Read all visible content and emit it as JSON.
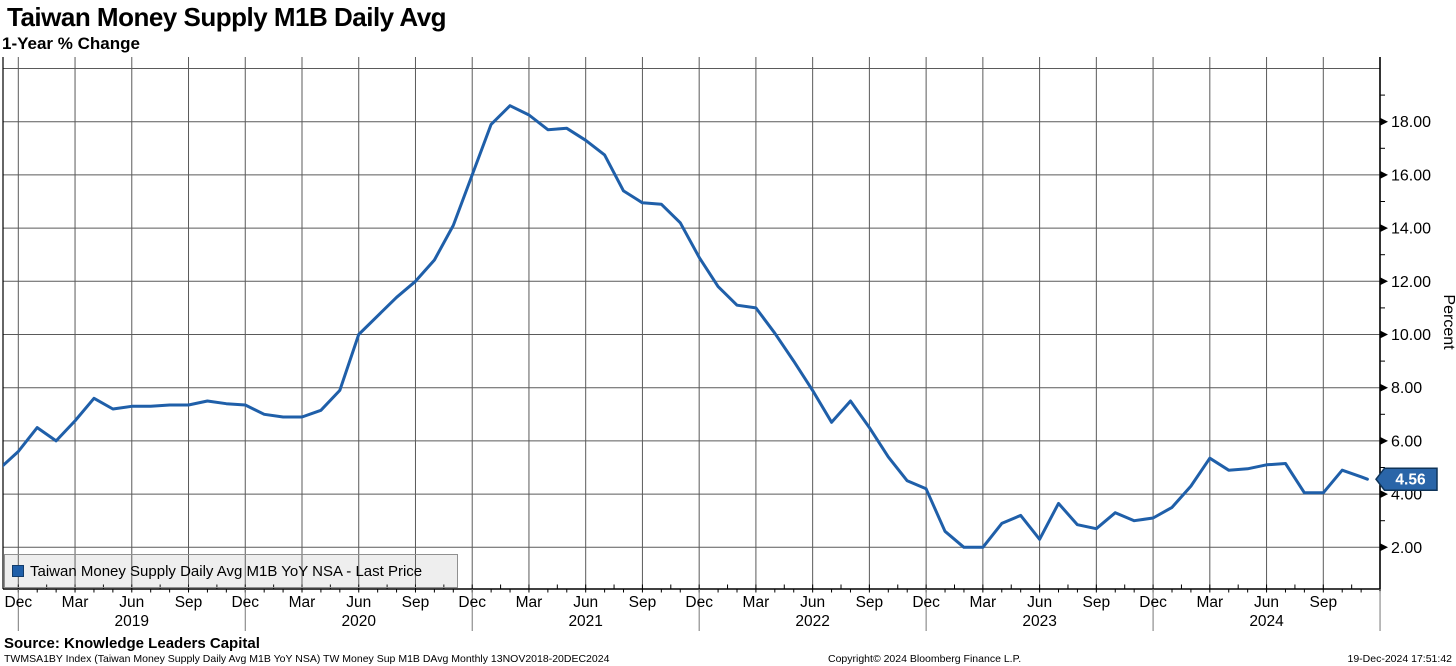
{
  "header": {
    "title": "Taiwan Money Supply M1B Daily Avg",
    "subtitle": "1-Year % Change"
  },
  "legend": {
    "label": "Taiwan Money Supply Daily Avg M1B YoY NSA - Last Price"
  },
  "footer": {
    "source": "Source: Knowledge Leaders Capital",
    "description": "TWMSA1BY Index (Taiwan Money Supply Daily Avg M1B YoY NSA) TW Money Sup M1B DAvg  Monthly 13NOV2018-20DEC2024",
    "copyright": "Copyright© 2024 Bloomberg Finance L.P.",
    "timestamp": "19-Dec-2024 17:51:42"
  },
  "colors": {
    "line": "#1f5fa9",
    "grid": "#5a5a5a",
    "axis": "#000000",
    "badge_fill": "#2a65a8",
    "badge_border": "#0f3459",
    "badge_text": "#ffffff"
  },
  "chart_data": {
    "type": "line",
    "title": "Taiwan Money Supply M1B Daily Avg",
    "subtitle": "1-Year % Change",
    "ylabel": "Percent",
    "grid": true,
    "legend_position": "bottom-left",
    "x_range": "Nov 2018 - Dec 2024 (monthly)",
    "ylim_gridlines": [
      2,
      20
    ],
    "y_tick_labels": [
      "18.00",
      "16.00",
      "14.00",
      "12.00",
      "10.00",
      "8.00",
      "6.00",
      "4.00",
      "2.00"
    ],
    "y_ticks_labeled_values": [
      18,
      16,
      14,
      12,
      10,
      8,
      6,
      4,
      2
    ],
    "x_quarter_labels": [
      "Dec",
      "Mar",
      "Jun",
      "Sep",
      "Dec",
      "Mar",
      "Jun",
      "Sep",
      "Dec",
      "Mar",
      "Jun",
      "Sep",
      "Dec",
      "Mar",
      "Jun",
      "Sep",
      "Dec",
      "Mar",
      "Jun",
      "Sep",
      "Dec",
      "Mar",
      "Jun",
      "Sep"
    ],
    "x_year_labels": [
      "2019",
      "2020",
      "2021",
      "2022",
      "2023",
      "2024"
    ],
    "last_price_label": "4.56",
    "series": [
      {
        "name": "Taiwan Money Supply Daily Avg M1B YoY NSA - Last Price",
        "color": "#1f5fa9",
        "start_month": "2018-11",
        "frequency": "monthly",
        "last_value": 4.56,
        "values": [
          4.95,
          5.6,
          6.5,
          6.0,
          6.75,
          7.6,
          7.2,
          7.3,
          7.3,
          7.35,
          7.35,
          7.5,
          7.4,
          7.35,
          7.0,
          6.9,
          6.9,
          7.15,
          7.9,
          10.0,
          10.7,
          11.4,
          12.0,
          12.8,
          14.1,
          16.0,
          17.9,
          18.6,
          18.25,
          17.7,
          17.75,
          17.3,
          16.75,
          15.4,
          14.95,
          14.9,
          14.2,
          12.9,
          11.8,
          11.1,
          11.0,
          10.05,
          9.0,
          7.9,
          6.7,
          7.5,
          6.5,
          5.4,
          4.5,
          4.2,
          2.6,
          2.0,
          2.0,
          2.9,
          3.2,
          2.3,
          3.65,
          2.85,
          2.7,
          3.3,
          3.0,
          3.1,
          3.5,
          4.3,
          5.35,
          4.9,
          4.95,
          5.1,
          5.15,
          4.05,
          4.05,
          4.9,
          4.65,
          4.56
        ]
      }
    ]
  }
}
